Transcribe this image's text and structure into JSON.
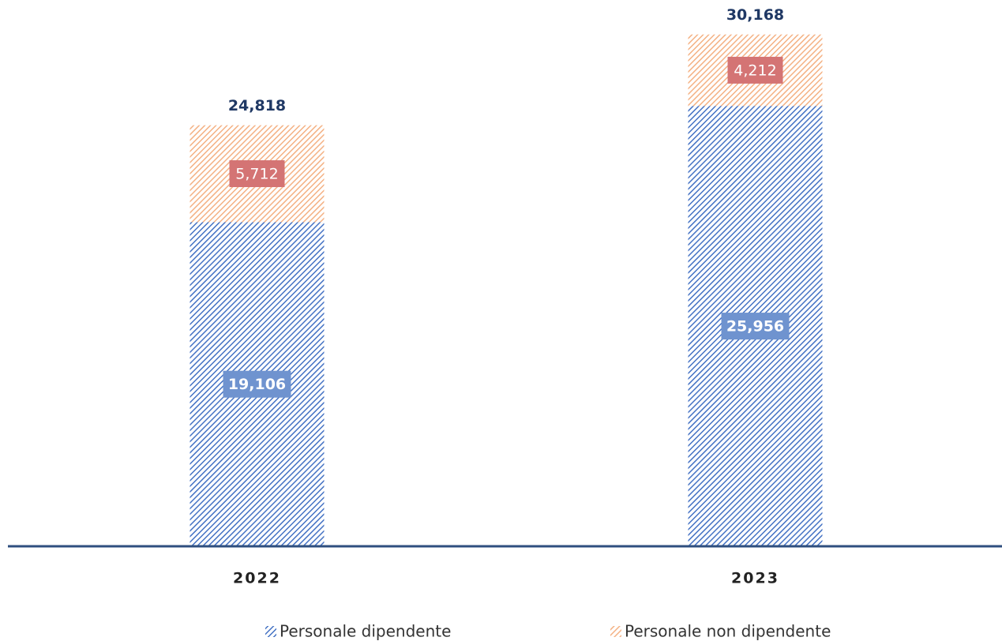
{
  "chart_data": {
    "type": "stacked_bar",
    "categories": [
      "2022",
      "2023"
    ],
    "series": [
      {
        "name": "Personale dipendente",
        "color": "#4472c4",
        "values": [
          19106,
          25956
        ],
        "value_labels": [
          "19,106",
          "25,956"
        ]
      },
      {
        "name": "Personale non dipendente",
        "color": "#f4b183",
        "values": [
          5712,
          4212
        ],
        "value_labels": [
          "5,712",
          "4,212"
        ]
      }
    ],
    "totals": [
      24818,
      30168
    ],
    "total_labels": [
      "24,818",
      "30,168"
    ],
    "ylim": [
      0,
      32200
    ],
    "legend": "bottom"
  }
}
